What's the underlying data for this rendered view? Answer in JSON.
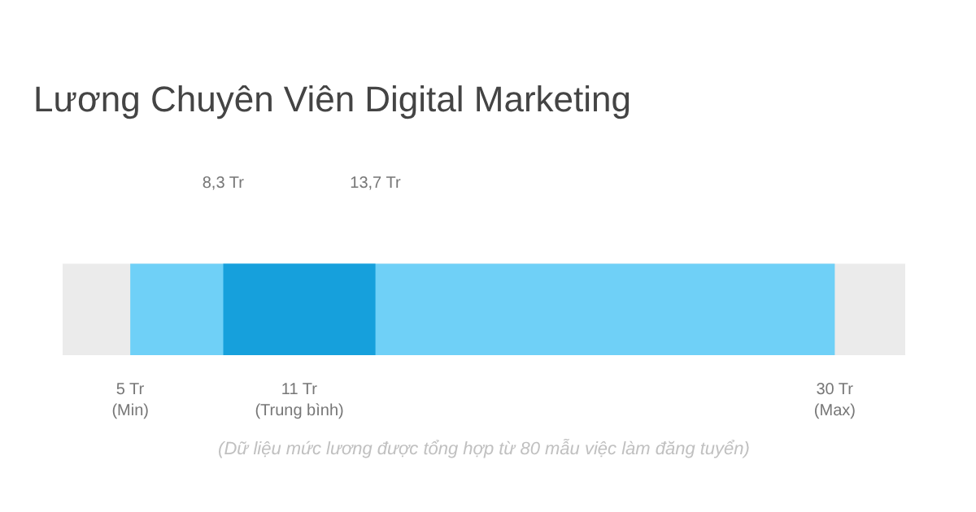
{
  "chart_data": {
    "type": "bar",
    "orientation": "horizontal",
    "title": "Lương Chuyên Viên Digital Marketing",
    "categories": [
      null
    ],
    "base": [
      5
    ],
    "values": [
      25
    ],
    "color": "#6fd0f7",
    "xlim": [
      2.6,
      32.5
    ],
    "xticks": [
      {
        "value": 5,
        "label": "5 Tr\n(Min)"
      },
      {
        "value": 11,
        "label": "11 Tr\n(Trung bình)"
      },
      {
        "value": 30,
        "label": "30 Tr\n(Max)"
      }
    ],
    "bands": [
      {
        "axis": "x",
        "from": 8.3,
        "to": 13.7,
        "color": "#16a0dc"
      }
    ],
    "x2lim": [
      2.6,
      32.5
    ],
    "x2ticks": [
      {
        "value": 8.3,
        "label": "8,3 Tr"
      },
      {
        "value": 13.7,
        "label": "13,7 Tr"
      }
    ],
    "annotations": [
      "(Dữ liệu mức lương được tổng hợp từ 80 mẫu việc làm đăng tuyển)"
    ],
    "grid": false,
    "tick_labels": "x"
  }
}
